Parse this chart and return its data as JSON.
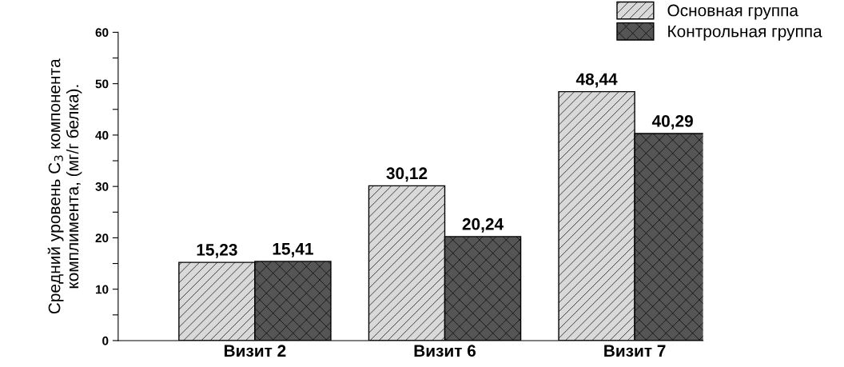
{
  "chart_data": {
    "type": "bar",
    "ylabel": "Средний уровень C$_{3}$ компонента\nкомплимента, (мг/г белка).",
    "categories": [
      "Визит 2",
      "Визит 6",
      "Визит 7"
    ],
    "series": [
      {
        "name": "Основная группа",
        "color": "#d9d9d9",
        "values": [
          15.23,
          30.12,
          48.44
        ],
        "value_labels": [
          "15,23",
          "30,12",
          "48,44"
        ]
      },
      {
        "name": "Контрольная группа",
        "color": "#555555",
        "values": [
          15.41,
          20.24,
          40.29
        ],
        "value_labels": [
          "15,41",
          "20,24",
          "40,29"
        ]
      }
    ],
    "ylim": [
      0,
      60
    ],
    "yticks": [
      0,
      {
        "value": 5,
        "label": null
      },
      10,
      {
        "value": 15,
        "label": null
      },
      20,
      {
        "value": 25,
        "label": null
      },
      30,
      {
        "value": 35,
        "label": null
      },
      40,
      {
        "value": 45,
        "label": null
      },
      50,
      {
        "value": 55,
        "label": null
      },
      60
    ],
    "legend": "top right",
    "grid": false
  }
}
